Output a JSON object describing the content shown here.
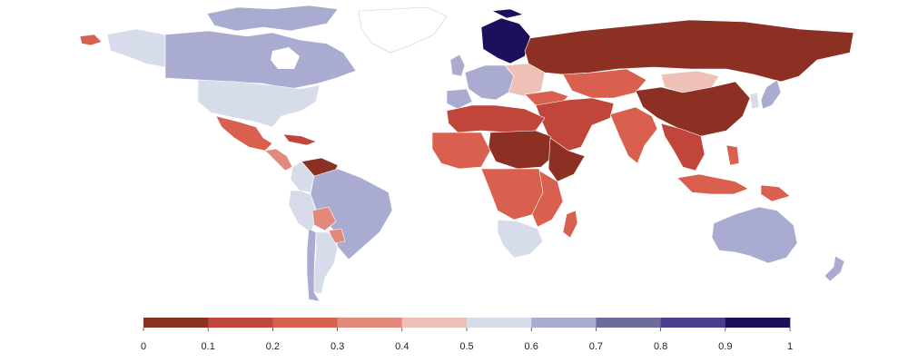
{
  "map": {
    "type": "choropleth",
    "legend": {
      "min": 0,
      "max": 1,
      "step": 0.1,
      "ticks": [
        "0",
        "0.1",
        "0.2",
        "0.3",
        "0.4",
        "0.5",
        "0.6",
        "0.7",
        "0.8",
        "0.9",
        "1"
      ],
      "colors": [
        "#8c3024",
        "#c0453a",
        "#d9604f",
        "#e3897b",
        "#efc0b6",
        "#d6dcea",
        "#a9acd0",
        "#6c6c9c",
        "#4a3f8e",
        "#1e0f5c"
      ]
    },
    "regions": [
      {
        "name": "Greenland",
        "value": null
      },
      {
        "name": "Canada",
        "value": 0.7
      },
      {
        "name": "Alaska",
        "value": 0.55
      },
      {
        "name": "Canadian Arctic Islands",
        "value": 0.7
      },
      {
        "name": "United States",
        "value": 0.55
      },
      {
        "name": "Mexico",
        "value": 0.3
      },
      {
        "name": "Central America",
        "value": 0.35
      },
      {
        "name": "Cuba",
        "value": 0.1
      },
      {
        "name": "Venezuela",
        "value": 0.05
      },
      {
        "name": "Colombia",
        "value": 0.6
      },
      {
        "name": "Peru",
        "value": 0.6
      },
      {
        "name": "Brazil",
        "value": 0.7
      },
      {
        "name": "Bolivia",
        "value": 0.35
      },
      {
        "name": "Paraguay",
        "value": 0.35
      },
      {
        "name": "Argentina",
        "value": 0.55
      },
      {
        "name": "Chile",
        "value": 0.7
      },
      {
        "name": "Iceland",
        "value": 0.2
      },
      {
        "name": "Scandinavia",
        "value": 0.95
      },
      {
        "name": "Western Europe",
        "value": 0.7
      },
      {
        "name": "United Kingdom",
        "value": 0.65
      },
      {
        "name": "Spain",
        "value": 0.65
      },
      {
        "name": "Eastern Europe",
        "value": 0.4
      },
      {
        "name": "Russia",
        "value": 0.05
      },
      {
        "name": "Mongolia",
        "value": 0.4
      },
      {
        "name": "China",
        "value": 0.05
      },
      {
        "name": "Central Asia",
        "value": 0.2
      },
      {
        "name": "Middle East",
        "value": 0.1
      },
      {
        "name": "Turkey",
        "value": 0.3
      },
      {
        "name": "India",
        "value": 0.3
      },
      {
        "name": "Southeast Asia",
        "value": 0.15
      },
      {
        "name": "Indonesia",
        "value": 0.25
      },
      {
        "name": "Philippines",
        "value": 0.3
      },
      {
        "name": "Papua New Guinea",
        "value": 0.3
      },
      {
        "name": "Japan",
        "value": 0.65
      },
      {
        "name": "Korea",
        "value": 0.6
      },
      {
        "name": "North Africa",
        "value": 0.15
      },
      {
        "name": "Sahel",
        "value": 0.05
      },
      {
        "name": "Horn of Africa",
        "value": 0.05
      },
      {
        "name": "West Africa",
        "value": 0.2
      },
      {
        "name": "Central Africa",
        "value": 0.2
      },
      {
        "name": "East Africa",
        "value": 0.3
      },
      {
        "name": "Southern Africa",
        "value": 0.55
      },
      {
        "name": "Madagascar",
        "value": 0.2
      },
      {
        "name": "Australia",
        "value": 0.7
      },
      {
        "name": "New Zealand",
        "value": 0.7
      }
    ]
  }
}
